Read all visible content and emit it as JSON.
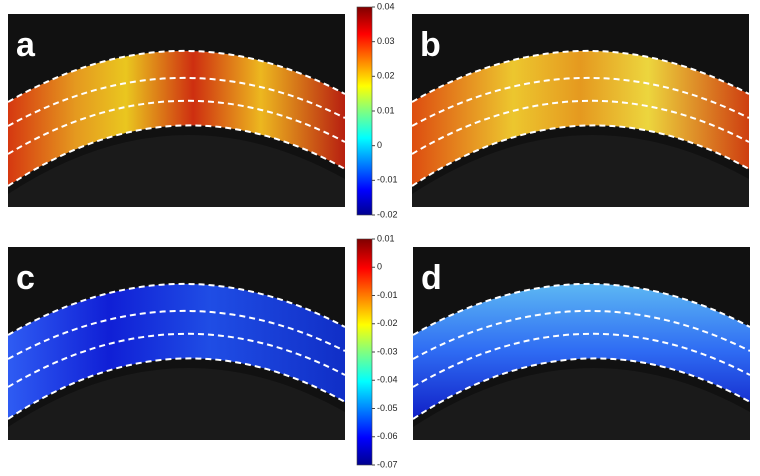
{
  "panels": [
    {
      "label": "a"
    },
    {
      "label": "b"
    },
    {
      "label": "c"
    },
    {
      "label": "d"
    }
  ],
  "colorbars": [
    {
      "lim": [
        -0.02,
        0.04
      ],
      "ticks": [
        0.04,
        0.03,
        0.02,
        0.01,
        0,
        -0.01,
        -0.02
      ]
    },
    {
      "lim": [
        -0.07,
        0.01
      ],
      "ticks": [
        0.01,
        0,
        -0.01,
        -0.02,
        -0.03,
        -0.04,
        -0.05,
        -0.06,
        -0.07
      ]
    }
  ]
}
